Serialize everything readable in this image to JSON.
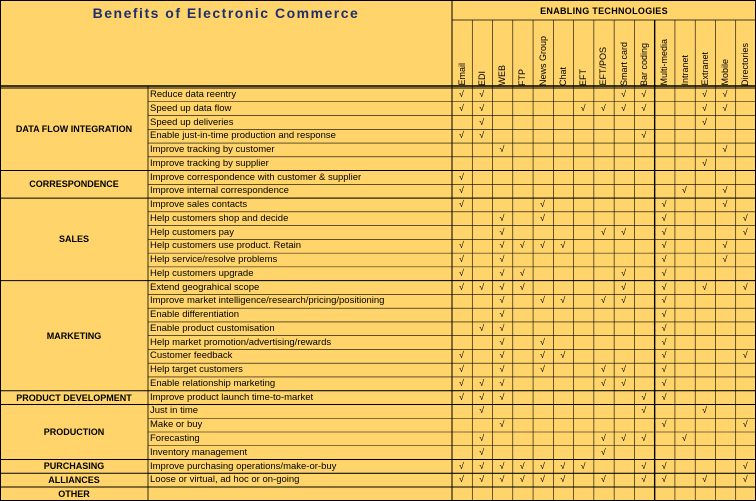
{
  "title": "Benefits of Electronic Commerce",
  "enabling_label": "ENABLING TECHNOLOGIES",
  "tick_mark": "√",
  "technologies": [
    "Email",
    "EDI",
    "WEB",
    "FTP",
    "News Group",
    "Chat",
    "EFT",
    "EFT/POS",
    "Smart card",
    "Bar coding",
    "Multi-media",
    "Intranet",
    "Extranet",
    "Mobile",
    "Directories"
  ],
  "categories": [
    {
      "name": "DATA FLOW INTEGRATION",
      "rows": [
        {
          "benefit": "Reduce data reentry",
          "ticks": [
            0,
            1,
            8,
            9,
            12,
            13
          ]
        },
        {
          "benefit": "Speed up data flow",
          "ticks": [
            0,
            1,
            6,
            7,
            8,
            9,
            12,
            13
          ]
        },
        {
          "benefit": "Speed up deliveries",
          "ticks": [
            1,
            12
          ]
        },
        {
          "benefit": "Enable just-in-time production and response",
          "ticks": [
            0,
            1,
            9
          ]
        },
        {
          "benefit": "Improve tracking by customer",
          "ticks": [
            2,
            13
          ]
        },
        {
          "benefit": "Improve tracking by supplier",
          "ticks": [
            12
          ]
        }
      ]
    },
    {
      "name": "CORRESPONDENCE",
      "rows": [
        {
          "benefit": "Improve correspondence with customer & supplier",
          "ticks": [
            0
          ]
        },
        {
          "benefit": "Improve internal correspondence",
          "ticks": [
            0,
            11,
            13
          ]
        }
      ]
    },
    {
      "name": "SALES",
      "rows": [
        {
          "benefit": "Improve sales contacts",
          "ticks": [
            0,
            4,
            10,
            13
          ]
        },
        {
          "benefit": "Help customers shop and decide",
          "ticks": [
            2,
            4,
            10,
            14
          ]
        },
        {
          "benefit": "Help customers pay",
          "ticks": [
            2,
            7,
            8,
            10,
            14
          ]
        },
        {
          "benefit": "Help customers use product.  Retain",
          "ticks": [
            0,
            2,
            3,
            4,
            5,
            10,
            13
          ]
        },
        {
          "benefit": "Help service/resolve problems",
          "ticks": [
            0,
            2,
            10,
            13
          ]
        },
        {
          "benefit": "Help customers upgrade",
          "ticks": [
            0,
            2,
            3,
            8,
            10
          ]
        }
      ]
    },
    {
      "name": "MARKETING",
      "rows": [
        {
          "benefit": "Extend geograhical scope",
          "ticks": [
            0,
            1,
            2,
            3,
            8,
            10,
            12,
            14
          ]
        },
        {
          "benefit": "Improve market intelligence/research/pricing/positioning",
          "ticks": [
            2,
            4,
            5,
            7,
            8,
            10
          ]
        },
        {
          "benefit": "Enable differentiation",
          "ticks": [
            2,
            10
          ]
        },
        {
          "benefit": "Enable product customisation",
          "ticks": [
            1,
            2,
            10
          ]
        },
        {
          "benefit": "Help market promotion/advertising/rewards",
          "ticks": [
            2,
            4,
            10
          ]
        },
        {
          "benefit": "Customer feedback",
          "ticks": [
            0,
            2,
            4,
            5,
            10,
            14
          ]
        },
        {
          "benefit": "Help target customers",
          "ticks": [
            0,
            2,
            4,
            7,
            8,
            10
          ]
        },
        {
          "benefit": "Enable relationship marketing",
          "ticks": [
            0,
            1,
            2,
            7,
            8,
            10
          ]
        }
      ]
    },
    {
      "name": "PRODUCT DEVELOPMENT",
      "rows": [
        {
          "benefit": "Improve product launch time-to-market",
          "ticks": [
            0,
            1,
            2,
            9,
            10
          ]
        }
      ]
    },
    {
      "name": "PRODUCTION",
      "rows": [
        {
          "benefit": "Just in time",
          "ticks": [
            1,
            9,
            12
          ]
        },
        {
          "benefit": "Make or buy",
          "ticks": [
            2,
            10,
            14
          ]
        },
        {
          "benefit": "Forecasting",
          "ticks": [
            1,
            7,
            8,
            9,
            11
          ]
        },
        {
          "benefit": "Inventory management",
          "ticks": [
            1,
            7
          ]
        }
      ]
    },
    {
      "name": "PURCHASING",
      "rows": [
        {
          "benefit": "Improve purchasing operations/make-or-buy",
          "ticks": [
            0,
            1,
            2,
            3,
            4,
            5,
            6,
            9,
            10,
            14
          ]
        }
      ]
    },
    {
      "name": "ALLIANCES",
      "rows": [
        {
          "benefit": "Loose or virtual, ad hoc or on-going",
          "ticks": [
            0,
            1,
            2,
            3,
            4,
            5,
            7,
            9,
            10,
            12,
            14
          ]
        }
      ]
    },
    {
      "name": "OTHER",
      "rows": []
    }
  ]
}
